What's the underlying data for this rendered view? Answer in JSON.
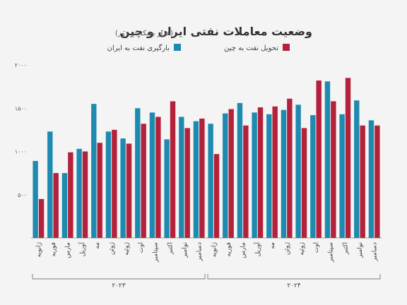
{
  "header": {
    "title": "وضعیت معاملات نفتی ایران و چین",
    "subtitle": "(هزار بشکه در روز)"
  },
  "colors": {
    "blue": "#1f8ab0",
    "red": "#b3213a",
    "background": "#f4f4f4",
    "axis": "#555555"
  },
  "chart_data": {
    "type": "bar",
    "title": "وضعیت معاملات نفتی ایران و چین",
    "subtitle": "(هزار بشکه در روز)",
    "ylim": [
      0,
      2000
    ],
    "yticks": [
      500,
      1000,
      1500,
      2000
    ],
    "ytick_labels": [
      "۵۰۰",
      "۱۰۰۰",
      "۱۵۰۰",
      "۲۰۰۰"
    ],
    "grid": false,
    "legend_position": "top",
    "categories": [
      "ژانویه",
      "فوریه",
      "مارس",
      "آوریل",
      "مه",
      "ژوئن",
      "ژوئیه",
      "اوت",
      "سپتامبر",
      "اکتبر",
      "نوامبر",
      "دسامبر",
      "ژانویه",
      "فوریه",
      "مارس",
      "آوریل",
      "مه",
      "ژوئن",
      "ژوئیه",
      "اوت",
      "سپتامبر",
      "اکتبر",
      "نوامبر",
      "دسامبر"
    ],
    "groups": [
      {
        "label": "۲۰۲۳",
        "start": 0,
        "end": 11
      },
      {
        "label": "۲۰۲۴",
        "start": 12,
        "end": 23
      }
    ],
    "series": [
      {
        "name": "بارگیری نفت به ایران",
        "color": "#1f8ab0",
        "values": [
          890,
          1230,
          750,
          1030,
          1550,
          1230,
          1150,
          1500,
          1450,
          1140,
          1400,
          1350,
          1320,
          1440,
          1560,
          1450,
          1430,
          1480,
          1540,
          1420,
          1810,
          1430,
          1590,
          1360
        ]
      },
      {
        "name": "تحویل نفت به چین",
        "color": "#b3213a",
        "values": [
          450,
          750,
          990,
          1000,
          1100,
          1250,
          1090,
          1320,
          1400,
          1580,
          1270,
          1380,
          970,
          1490,
          1300,
          1510,
          1520,
          1610,
          1270,
          1820,
          1580,
          1850,
          1300,
          1300
        ]
      }
    ]
  }
}
